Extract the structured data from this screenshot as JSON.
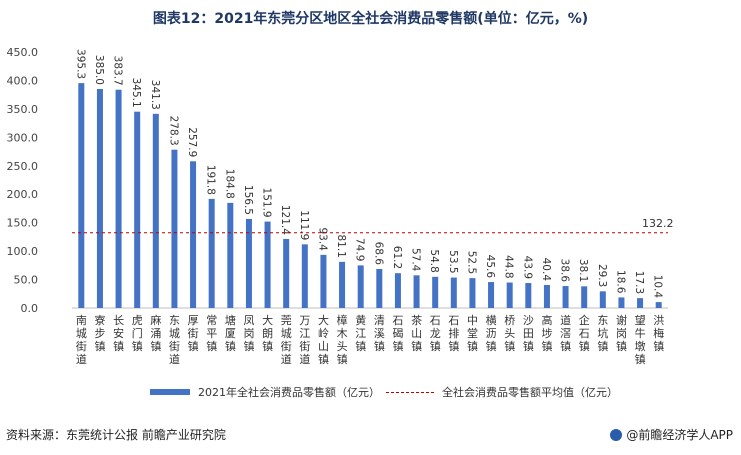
{
  "title": "图表12：2021年东莞分区地区全社会消费品零售额(单位：亿元，%)",
  "legend": {
    "bar_label": "2021年全社会消费品零售额（亿元）",
    "line_label": "全社会消费品零售额平均值（亿元）"
  },
  "footer": {
    "source": "资料来源：东莞统计公报 前瞻产业研究院",
    "brand": "@前瞻经济学人APP"
  },
  "colors": {
    "bar": "#4472c4",
    "avg_line": "#c00000"
  },
  "chart_data": {
    "type": "bar",
    "categories": [
      "南城街道",
      "寮步镇",
      "长安镇",
      "虎门镇",
      "麻涌镇",
      "东城街道",
      "厚街镇",
      "常平镇",
      "塘厦镇",
      "凤岗镇",
      "大朗镇",
      "莞城街道",
      "万江街道",
      "大岭山镇",
      "樟木头镇",
      "黄江镇",
      "清溪镇",
      "石碣镇",
      "茶山镇",
      "石龙镇",
      "石排镇",
      "中堂镇",
      "横沥镇",
      "桥头镇",
      "沙田镇",
      "高埗镇",
      "道滘镇",
      "企石镇",
      "东坑镇",
      "谢岗镇",
      "望牛墩镇",
      "洪梅镇"
    ],
    "values": [
      395.3,
      385.0,
      383.7,
      345.1,
      341.3,
      278.3,
      257.9,
      191.8,
      184.8,
      156.5,
      151.9,
      121.4,
      111.9,
      93.4,
      81.1,
      74.9,
      68.6,
      61.2,
      57.4,
      54.8,
      53.5,
      52.5,
      45.6,
      44.8,
      43.9,
      40.4,
      38.6,
      38.1,
      29.3,
      18.6,
      17.3,
      10.4
    ],
    "value_labels": [
      "395.3",
      "385.0",
      "383.7",
      "345.1",
      "341.3",
      "278.3",
      "257.9",
      "191.8",
      "184.8",
      "156.5",
      "151.9",
      "121.4",
      "111.9",
      "93.4",
      "81.1",
      "74.9",
      "68.6",
      "61.2",
      "57.4",
      "54.8",
      "53.5",
      "52.5",
      "45.6",
      "44.8",
      "43.9",
      "40.4",
      "38.6",
      "38.1",
      "29.3",
      "18.6",
      "17.3",
      "10.4"
    ],
    "average": 132.2,
    "average_label": "132.2",
    "ylim": [
      0,
      450
    ],
    "yticks": [
      "0.0",
      "50.0",
      "100.0",
      "150.0",
      "200.0",
      "250.0",
      "300.0",
      "350.0",
      "400.0",
      "450.0"
    ],
    "grid": false,
    "legend_position": "bottom"
  }
}
